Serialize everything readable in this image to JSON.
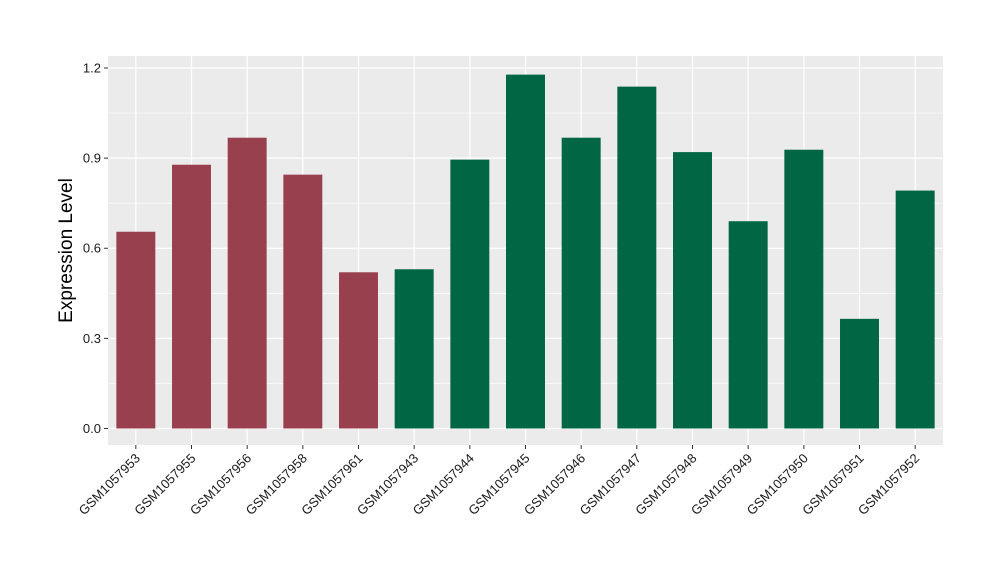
{
  "chart_data": {
    "type": "bar",
    "title": "",
    "xlabel": "",
    "ylabel": "Expression Level",
    "ylim": [
      -0.055,
      1.24
    ],
    "yticks": [
      0.0,
      0.3,
      0.6,
      0.9,
      1.2
    ],
    "ytick_labels": [
      "0.0",
      "0.3",
      "0.6",
      "0.9",
      "1.2"
    ],
    "grid": true,
    "legend": "none",
    "categories": [
      "GSM1057953",
      "GSM1057955",
      "GSM1057956",
      "GSM1057958",
      "GSM1057961",
      "GSM1057943",
      "GSM1057944",
      "GSM1057945",
      "GSM1057946",
      "GSM1057947",
      "GSM1057948",
      "GSM1057949",
      "GSM1057950",
      "GSM1057951",
      "GSM1057952"
    ],
    "values": [
      0.655,
      0.878,
      0.968,
      0.845,
      0.52,
      0.53,
      0.895,
      1.178,
      0.968,
      1.138,
      0.92,
      0.69,
      0.928,
      0.365,
      0.792
    ],
    "group": [
      0,
      0,
      0,
      0,
      0,
      1,
      1,
      1,
      1,
      1,
      1,
      1,
      1,
      1,
      1
    ],
    "colors": [
      "#99404f",
      "#006644"
    ],
    "panel_background": "#ebebeb",
    "grid_color": "#ffffff"
  }
}
